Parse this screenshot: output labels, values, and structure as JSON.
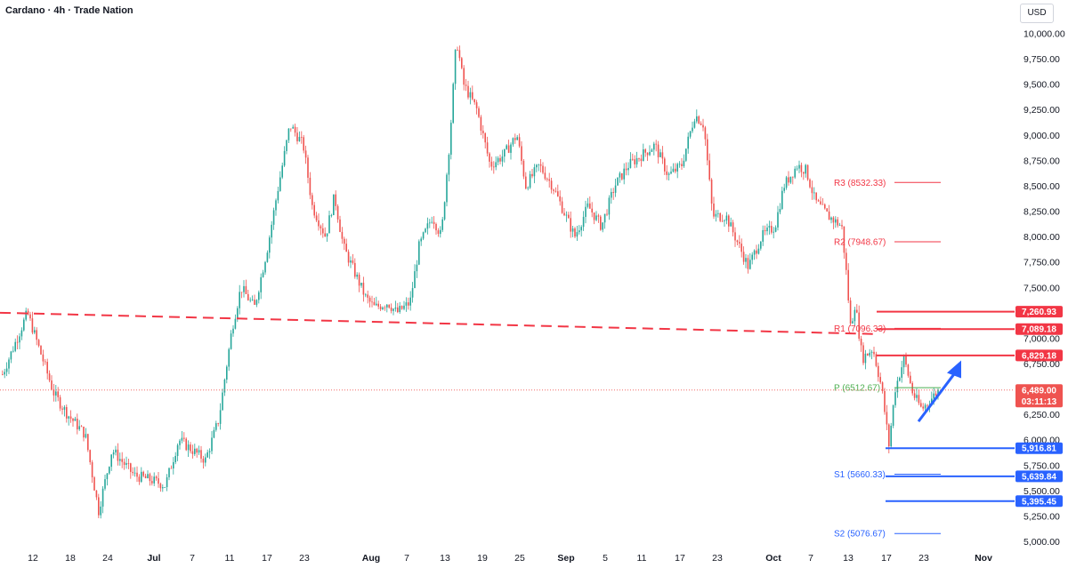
{
  "header": {
    "title": "Cardano · 4h · Trade Nation",
    "currency": "USD"
  },
  "colors": {
    "up": "#26a69a",
    "down": "#ef5350",
    "resistance": "#f23645",
    "support": "#2962ff",
    "pivot": "#4caf50",
    "arrow": "#2962ff",
    "trend": "#f23645"
  },
  "chart_data": {
    "type": "candlestick",
    "title": "Cardano · 4h · Trade Nation",
    "ylim": [
      5000,
      10000
    ],
    "y_ticks": [
      "10,000.00",
      "9,750.00",
      "9,500.00",
      "9,250.00",
      "9,000.00",
      "8,750.00",
      "8,500.00",
      "8,250.00",
      "8,000.00",
      "7,750.00",
      "7,500.00",
      "7,250.00",
      "7,000.00",
      "6,750.00",
      "6,500.00",
      "6,250.00",
      "6,000.00",
      "5,750.00",
      "5,500.00",
      "5,250.00",
      "5,000.00"
    ],
    "x_ticks": [
      {
        "label": "12",
        "bold": false
      },
      {
        "label": "18",
        "bold": false
      },
      {
        "label": "24",
        "bold": false
      },
      {
        "label": "Jul",
        "bold": true
      },
      {
        "label": "7",
        "bold": false
      },
      {
        "label": "11",
        "bold": false
      },
      {
        "label": "17",
        "bold": false
      },
      {
        "label": "23",
        "bold": false
      },
      {
        "label": "Aug",
        "bold": true
      },
      {
        "label": "7",
        "bold": false
      },
      {
        "label": "13",
        "bold": false
      },
      {
        "label": "19",
        "bold": false
      },
      {
        "label": "25",
        "bold": false
      },
      {
        "label": "Sep",
        "bold": true
      },
      {
        "label": "5",
        "bold": false
      },
      {
        "label": "11",
        "bold": false
      },
      {
        "label": "17",
        "bold": false
      },
      {
        "label": "23",
        "bold": false
      },
      {
        "label": "Oct",
        "bold": true
      },
      {
        "label": "7",
        "bold": false
      },
      {
        "label": "13",
        "bold": false
      },
      {
        "label": "17",
        "bold": false
      },
      {
        "label": "23",
        "bold": false
      },
      {
        "label": "Nov",
        "bold": true
      }
    ],
    "path_points": [
      [
        0,
        6600
      ],
      [
        30,
        7250
      ],
      [
        45,
        6850
      ],
      [
        60,
        6450
      ],
      [
        75,
        6250
      ],
      [
        95,
        6050
      ],
      [
        110,
        5300
      ],
      [
        125,
        5900
      ],
      [
        150,
        5650
      ],
      [
        170,
        5600
      ],
      [
        185,
        5550
      ],
      [
        200,
        6000
      ],
      [
        215,
        5900
      ],
      [
        230,
        5800
      ],
      [
        245,
        6200
      ],
      [
        260,
        7100
      ],
      [
        270,
        7500
      ],
      [
        285,
        7300
      ],
      [
        300,
        7900
      ],
      [
        310,
        8400
      ],
      [
        325,
        9100
      ],
      [
        340,
        8900
      ],
      [
        350,
        8300
      ],
      [
        365,
        8000
      ],
      [
        375,
        8400
      ],
      [
        385,
        7900
      ],
      [
        400,
        7600
      ],
      [
        410,
        7400
      ],
      [
        420,
        7300
      ],
      [
        435,
        7350
      ],
      [
        445,
        7250
      ],
      [
        460,
        7350
      ],
      [
        470,
        7900
      ],
      [
        485,
        8200
      ],
      [
        495,
        8000
      ],
      [
        505,
        9000
      ],
      [
        512,
        9950
      ],
      [
        520,
        9500
      ],
      [
        535,
        9250
      ],
      [
        550,
        8700
      ],
      [
        565,
        8800
      ],
      [
        580,
        9000
      ],
      [
        590,
        8500
      ],
      [
        605,
        8700
      ],
      [
        620,
        8500
      ],
      [
        635,
        8200
      ],
      [
        645,
        8000
      ],
      [
        660,
        8300
      ],
      [
        675,
        8100
      ],
      [
        690,
        8500
      ],
      [
        705,
        8700
      ],
      [
        720,
        8800
      ],
      [
        735,
        8900
      ],
      [
        750,
        8600
      ],
      [
        765,
        8700
      ],
      [
        780,
        9200
      ],
      [
        790,
        9100
      ],
      [
        800,
        8200
      ],
      [
        815,
        8200
      ],
      [
        830,
        7900
      ],
      [
        840,
        7700
      ],
      [
        855,
        8000
      ],
      [
        870,
        8100
      ],
      [
        880,
        8500
      ],
      [
        895,
        8700
      ],
      [
        905,
        8650
      ],
      [
        915,
        8350
      ],
      [
        930,
        8200
      ],
      [
        945,
        8100
      ],
      [
        950,
        7650
      ],
      [
        955,
        7100
      ],
      [
        960,
        7350
      ],
      [
        968,
        6800
      ],
      [
        980,
        6900
      ],
      [
        990,
        6500
      ],
      [
        998,
        5950
      ],
      [
        1005,
        6500
      ],
      [
        1015,
        6800
      ],
      [
        1025,
        6450
      ],
      [
        1035,
        6300
      ],
      [
        1045,
        6400
      ],
      [
        1055,
        6500
      ]
    ],
    "annotations": {
      "trendline": {
        "from": [
          0,
          7250
        ],
        "to": [
          985,
          7040
        ],
        "style": "dashed"
      },
      "pivot_levels": [
        {
          "label": "R3 (8532.33)",
          "value": 8532.33
        },
        {
          "label": "R2 (7948.67)",
          "value": 7948.67
        },
        {
          "label": "R1 (7096.33)",
          "value": 7096.33
        },
        {
          "label": "P (6512.67)",
          "value": 6512.67
        },
        {
          "label": "S1 (5660.33)",
          "value": 5660.33
        },
        {
          "label": "S2 (5076.67)",
          "value": 5076.67
        }
      ],
      "resistance_lines": [
        7260.93,
        7089.18,
        6829.18
      ],
      "support_lines": [
        5916.81,
        5639.84,
        5395.45
      ],
      "current_price": 6489.0,
      "arrow": {
        "from": [
          6180
        ],
        "to": [
          6780
        ]
      }
    }
  },
  "price_tags": [
    {
      "text": "7,260.93",
      "value": 7260.93,
      "type": "resistance"
    },
    {
      "text": "7,089.18",
      "value": 7089.18,
      "type": "resistance"
    },
    {
      "text": "6,829.18",
      "value": 6829.18,
      "type": "resistance"
    },
    {
      "text": "6,489.00",
      "value": 6489.0,
      "type": "current",
      "sub": "03:11:13"
    },
    {
      "text": "5,916.81",
      "value": 5916.81,
      "type": "support"
    },
    {
      "text": "5,639.84",
      "value": 5639.84,
      "type": "support"
    },
    {
      "text": "5,395.45",
      "value": 5395.45,
      "type": "support"
    }
  ]
}
